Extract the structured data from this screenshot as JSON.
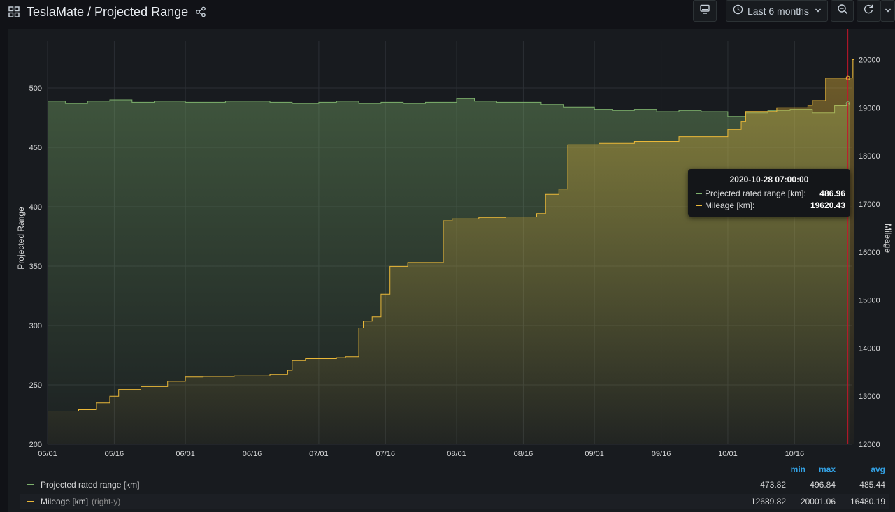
{
  "header": {
    "title": "TeslaMate / Projected Range",
    "time_range": "Last 6 months"
  },
  "colors": {
    "range": "#7eb26d",
    "mileage": "#eab839",
    "accent": "#33a2e5",
    "background": "#111217",
    "panel": "#181b1f"
  },
  "icons": {
    "dashboards": "grid-icon",
    "share": "share-icon",
    "tv_mode": "monitor-icon",
    "time_picker": "clock-icon",
    "zoom_out": "zoom-out-icon",
    "refresh": "refresh-icon",
    "refresh_menu": "chevron-down-icon"
  },
  "chart_data": {
    "type": "line",
    "x_type": "date",
    "x_range": [
      "2020-05-01",
      "2020-10-29"
    ],
    "x_ticks": [
      "05/01",
      "05/16",
      "06/01",
      "06/16",
      "07/01",
      "07/16",
      "08/01",
      "08/16",
      "09/01",
      "09/16",
      "10/01",
      "10/16"
    ],
    "y_left": {
      "label": "Projected Range",
      "range": [
        200,
        540
      ],
      "ticks": [
        200,
        250,
        300,
        350,
        400,
        450,
        500
      ]
    },
    "y_right": {
      "label": "Mileage",
      "range": [
        12000,
        20400
      ],
      "ticks": [
        12000,
        13000,
        14000,
        15000,
        16000,
        17000,
        18000,
        19000,
        20000
      ]
    },
    "grid": true,
    "fill": "gradient",
    "cursor": "2020-10-28",
    "series": [
      {
        "name": "Projected rated range [km]",
        "axis": "left",
        "x": [
          "2020-05-01",
          "2020-05-05",
          "2020-05-10",
          "2020-05-15",
          "2020-05-20",
          "2020-05-25",
          "2020-06-01",
          "2020-06-05",
          "2020-06-10",
          "2020-06-15",
          "2020-06-20",
          "2020-06-25",
          "2020-07-01",
          "2020-07-05",
          "2020-07-10",
          "2020-07-15",
          "2020-07-20",
          "2020-07-25",
          "2020-08-01",
          "2020-08-05",
          "2020-08-10",
          "2020-08-15",
          "2020-08-20",
          "2020-08-25",
          "2020-09-01",
          "2020-09-05",
          "2020-09-10",
          "2020-09-15",
          "2020-09-20",
          "2020-09-25",
          "2020-10-01",
          "2020-10-05",
          "2020-10-10",
          "2020-10-15",
          "2020-10-20",
          "2020-10-25",
          "2020-10-28"
        ],
        "y": [
          489,
          487,
          489,
          490,
          488,
          489,
          488,
          488,
          489,
          489,
          488,
          487,
          488,
          489,
          487,
          488,
          487,
          488,
          491,
          489,
          488,
          488,
          486,
          484,
          482,
          481,
          482,
          480,
          481,
          480,
          476,
          479,
          481,
          482,
          479,
          485,
          486.96
        ]
      },
      {
        "name": "Mileage [km]",
        "axis": "right",
        "x": [
          "2020-05-01",
          "2020-05-08",
          "2020-05-12",
          "2020-05-15",
          "2020-05-17",
          "2020-05-22",
          "2020-05-28",
          "2020-06-01",
          "2020-06-05",
          "2020-06-12",
          "2020-06-20",
          "2020-06-24",
          "2020-06-25",
          "2020-06-28",
          "2020-07-03",
          "2020-07-05",
          "2020-07-07",
          "2020-07-10",
          "2020-07-11",
          "2020-07-13",
          "2020-07-15",
          "2020-07-17",
          "2020-07-21",
          "2020-07-29",
          "2020-07-31",
          "2020-08-06",
          "2020-08-12",
          "2020-08-19",
          "2020-08-21",
          "2020-08-24",
          "2020-08-26",
          "2020-09-02",
          "2020-09-10",
          "2020-09-20",
          "2020-10-01",
          "2020-10-04",
          "2020-10-05",
          "2020-10-12",
          "2020-10-19",
          "2020-10-20",
          "2020-10-23",
          "2020-10-28",
          "2020-10-29"
        ],
        "y": [
          12690,
          12720,
          12860,
          13000,
          13140,
          13200,
          13310,
          13400,
          13410,
          13420,
          13450,
          13540,
          13740,
          13780,
          13780,
          13800,
          13820,
          14420,
          14560,
          14650,
          15120,
          15700,
          15780,
          16650,
          16690,
          16720,
          16730,
          16800,
          17200,
          17310,
          18230,
          18260,
          18300,
          18400,
          18550,
          18720,
          18920,
          19000,
          19050,
          19150,
          19620,
          19620.43,
          20001.06
        ]
      }
    ]
  },
  "tooltip": {
    "time": "2020-10-28 07:00:00",
    "rows": [
      {
        "label": "Projected rated range [km]:",
        "value": "486.96"
      },
      {
        "label": "Mileage [km]:",
        "value": "19620.43"
      }
    ]
  },
  "legend": {
    "headers": {
      "min": "min",
      "max": "max",
      "avg": "avg"
    },
    "rows": [
      {
        "name": "Projected rated range [km]",
        "suffix": "",
        "min": "473.82",
        "max": "496.84",
        "avg": "485.44"
      },
      {
        "name": "Mileage [km]",
        "suffix": "(right-y)",
        "min": "12689.82",
        "max": "20001.06",
        "avg": "16480.19"
      }
    ]
  }
}
